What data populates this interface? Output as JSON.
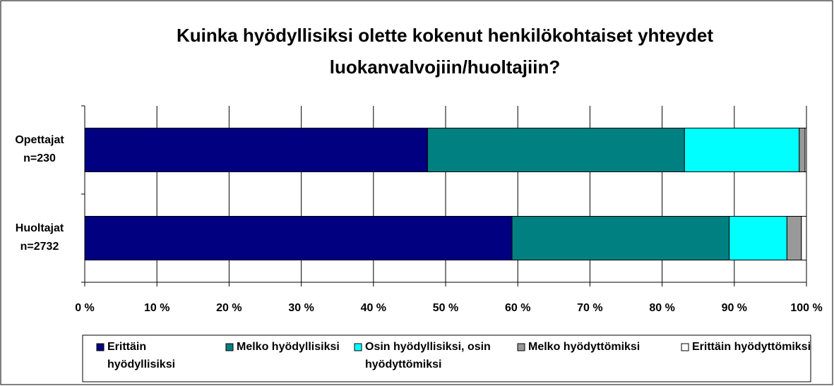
{
  "chart_data": {
    "type": "stacked_barh",
    "title": "Kuinka hyödyllisiksi olette kokenut henkilökohtaiset yhteydet luokanvalvojiin/huoltajiin?",
    "categories": [
      "Opettajat n=230",
      "Huoltajat n=2732"
    ],
    "series": [
      {
        "name": "Erittäin hyödyllisiksi",
        "color": "#000080",
        "values": [
          47.5,
          59.2
        ]
      },
      {
        "name": "Melko hyödyllisiksi",
        "color": "#008080",
        "values": [
          35.6,
          30.1
        ]
      },
      {
        "name": "Osin hyödyllisiksi, osin hyödyttömiksi",
        "color": "#00ffff",
        "values": [
          15.9,
          8.0
        ]
      },
      {
        "name": "Melko hyödyttömiksi",
        "color": "#999999",
        "values": [
          0.8,
          2.0
        ]
      },
      {
        "name": "Erittäin hyödyttömiksi",
        "color": "#ffffff",
        "values": [
          0.2,
          0.7
        ]
      }
    ],
    "xlim": [
      0,
      100
    ],
    "xticks": [
      {
        "value": 0,
        "label": "0 %"
      },
      {
        "value": 10,
        "label": "10 %"
      },
      {
        "value": 20,
        "label": "20 %"
      },
      {
        "value": 30,
        "label": "30 %"
      },
      {
        "value": 40,
        "label": "40 %"
      },
      {
        "value": 50,
        "label": "50 %"
      },
      {
        "value": 60,
        "label": "60 %"
      },
      {
        "value": 70,
        "label": "70 %"
      },
      {
        "value": 80,
        "label": "80 %"
      },
      {
        "value": 90,
        "label": "90 %"
      },
      {
        "value": 100,
        "label": "100 %"
      }
    ],
    "grid": true
  }
}
